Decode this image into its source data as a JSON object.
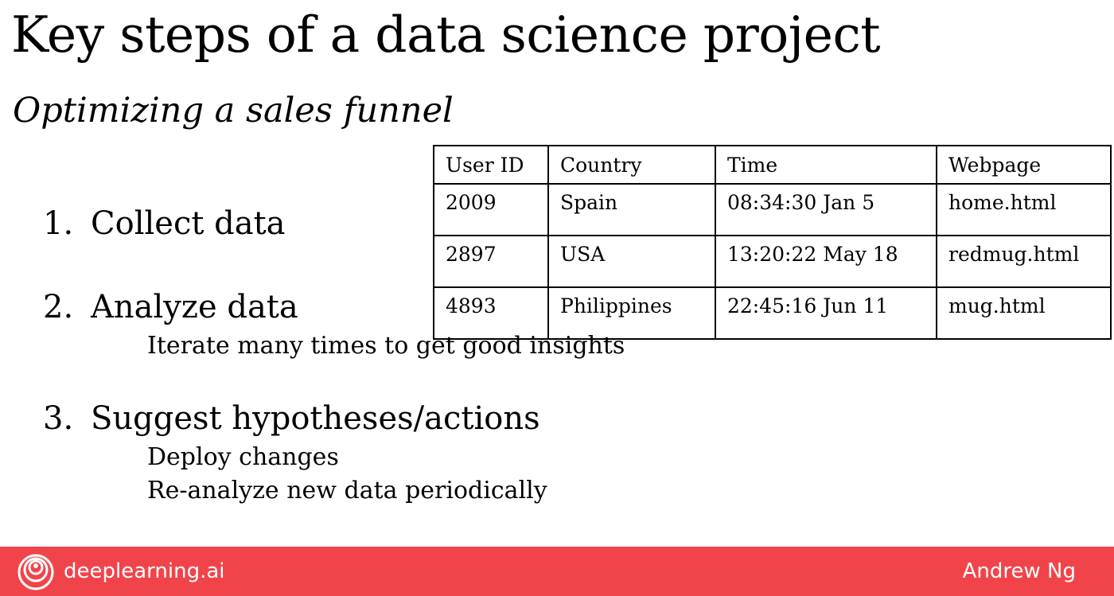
{
  "title": "Key steps of a data science project",
  "subtitle": "Optimizing a sales funnel",
  "steps": [
    {
      "number": "1.",
      "label": "Collect data",
      "details": []
    },
    {
      "number": "2.",
      "label": "Analyze data",
      "details": [
        "Iterate many times to get good insights"
      ]
    },
    {
      "number": "3.",
      "label": "Suggest hypotheses/actions",
      "details": [
        "Deploy changes",
        "Re-analyze new data periodically"
      ]
    }
  ],
  "table": {
    "headers": [
      "User ID",
      "Country",
      "Time",
      "Webpage"
    ],
    "rows": [
      [
        "2009",
        "Spain",
        "08:34:30 Jan 5",
        "home.html"
      ],
      [
        "2897",
        "USA",
        "13:20:22 May 18",
        "redmug.html"
      ],
      [
        "4893",
        "Philippines",
        "22:45:16 Jun 11",
        "mug.html"
      ]
    ]
  },
  "footer": {
    "brand": "deeplearning.ai",
    "author": "Andrew Ng",
    "logo_icon": "deeplearning-logo-icon",
    "background_color": "#f1444a"
  }
}
